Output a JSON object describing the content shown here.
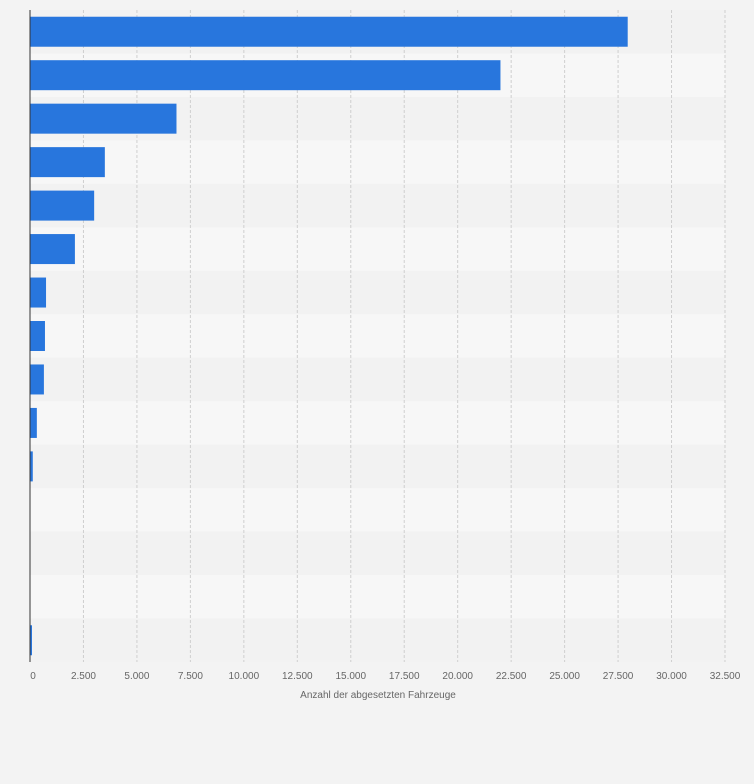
{
  "chart_data": {
    "type": "bar",
    "orientation": "horizontal",
    "title": "",
    "xlabel": "Anzahl der abgesetzten Fahrzeuge",
    "ylabel": "",
    "categories": [
      "",
      "",
      "",
      "",
      "",
      "",
      "",
      "",
      "",
      "",
      "",
      "",
      "",
      "",
      ""
    ],
    "values": [
      27950,
      22000,
      6850,
      3500,
      3000,
      2100,
      750,
      700,
      650,
      320,
      130,
      0,
      0,
      0,
      80
    ],
    "xlim": [
      0,
      32500
    ],
    "ticks": [
      0,
      2500,
      5000,
      7500,
      10000,
      12500,
      15000,
      17500,
      20000,
      22500,
      25000,
      27500,
      30000,
      32500
    ],
    "tick_labels": [
      "0",
      "2.500",
      "5.000",
      "7.500",
      "10.000",
      "12.500",
      "15.000",
      "17.500",
      "20.000",
      "22.500",
      "25.000",
      "27.500",
      "30.000",
      "32.500"
    ],
    "grid": true,
    "legend": "none",
    "colors": {
      "bar": "#2876dd",
      "band_dark": "#f2f2f2",
      "band_light": "#f7f7f7",
      "grid": "#cfcfcf",
      "axis": "#333333",
      "tick_text": "#666666"
    }
  }
}
